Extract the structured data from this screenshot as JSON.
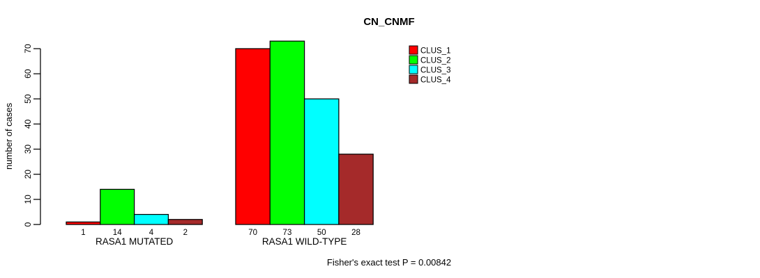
{
  "title": "CN_CNMF",
  "ylabel": "number of cases",
  "annotation": "Fisher's exact test P = 0.00842",
  "legend": [
    {
      "label": "CLUS_1",
      "color": "#FF0000"
    },
    {
      "label": "CLUS_2",
      "color": "#00FF00"
    },
    {
      "label": "CLUS_3",
      "color": "#00FFFF"
    },
    {
      "label": "CLUS_4",
      "color": "#A52A2A"
    }
  ],
  "chart_data": {
    "type": "bar",
    "title": "CN_CNMF",
    "xlabel": "",
    "ylabel": "number of cases",
    "ylim": [
      0,
      70
    ],
    "yticks": [
      0,
      10,
      20,
      30,
      40,
      50,
      60,
      70
    ],
    "grid": false,
    "legend_position": "top-right",
    "categories": [
      "RASA1 MUTATED",
      "RASA1 WILD-TYPE"
    ],
    "series": [
      {
        "name": "CLUS_1",
        "color": "#FF0000",
        "values": [
          1,
          70
        ]
      },
      {
        "name": "CLUS_2",
        "color": "#00FF00",
        "values": [
          14,
          73
        ]
      },
      {
        "name": "CLUS_3",
        "color": "#00FFFF",
        "values": [
          4,
          50
        ]
      },
      {
        "name": "CLUS_4",
        "color": "#A52A2A",
        "values": [
          2,
          28
        ]
      }
    ],
    "bar_value_labels_shown": true,
    "annotation": "Fisher's exact test P = 0.00842",
    "axis_color": "#000000",
    "bar_border_color": "#000000"
  }
}
